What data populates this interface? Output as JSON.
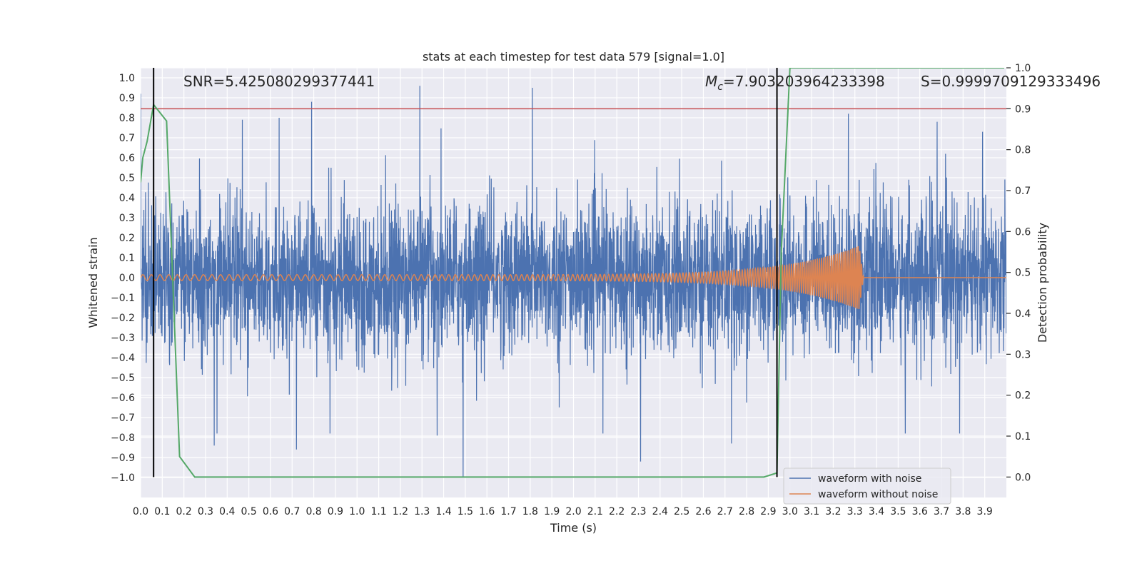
{
  "chart_data": {
    "type": "line",
    "title": "stats at each timestep for test data 579 [signal=1.0]",
    "xlabel": "Time (s)",
    "ylabel": "Whitened strain",
    "y2label": "Detection probability",
    "xlim": [
      0.0,
      4.0
    ],
    "ylim": [
      -1.1,
      1.05
    ],
    "y2lim": [
      -0.05,
      1.0
    ],
    "x_ticks": [
      "0.0",
      "0.1",
      "0.2",
      "0.3",
      "0.4",
      "0.5",
      "0.6",
      "0.7",
      "0.8",
      "0.9",
      "1.0",
      "1.1",
      "1.2",
      "1.3",
      "1.4",
      "1.5",
      "1.6",
      "1.7",
      "1.8",
      "1.9",
      "2.0",
      "2.1",
      "2.2",
      "2.3",
      "2.4",
      "2.5",
      "2.6",
      "2.7",
      "2.8",
      "2.9",
      "3.0",
      "3.1",
      "3.2",
      "3.3",
      "3.4",
      "3.5",
      "3.6",
      "3.7",
      "3.8",
      "3.9"
    ],
    "y_ticks": [
      "1.0",
      "0.9",
      "0.8",
      "0.7",
      "0.6",
      "0.5",
      "0.4",
      "0.3",
      "0.2",
      "0.1",
      "0.0",
      "−0.1",
      "−0.2",
      "−0.3",
      "−0.4",
      "−0.5",
      "−0.6",
      "−0.7",
      "−0.8",
      "−0.9",
      "−1.0"
    ],
    "y2_ticks": [
      "1.0",
      "0.9",
      "0.8",
      "0.7",
      "0.6",
      "0.5",
      "0.4",
      "0.3",
      "0.2",
      "0.1",
      "0.0"
    ],
    "grid": true,
    "legend_position": "bottom-right",
    "series": [
      {
        "name": "waveform with noise",
        "color": "#4c72b0",
        "axis": "left",
        "kind": "noise",
        "typical_amplitude": 0.25,
        "peaks": [
          {
            "x": 0.0,
            "y": 0.92
          },
          {
            "x": 0.47,
            "y": 0.79
          },
          {
            "x": 0.64,
            "y": 0.8
          },
          {
            "x": 0.79,
            "y": 0.88
          },
          {
            "x": 1.29,
            "y": 0.96
          },
          {
            "x": 1.49,
            "y": 0.95
          },
          {
            "x": 1.49,
            "y": -1.0
          },
          {
            "x": 1.81,
            "y": 0.95
          },
          {
            "x": 2.31,
            "y": -0.92
          },
          {
            "x": 1.37,
            "y": -0.79
          },
          {
            "x": 0.72,
            "y": -0.86
          },
          {
            "x": 0.34,
            "y": -0.84
          },
          {
            "x": 3.27,
            "y": 0.82
          },
          {
            "x": 3.89,
            "y": 0.73
          },
          {
            "x": 2.73,
            "y": -0.83
          }
        ]
      },
      {
        "name": "waveform without noise",
        "color": "#dd8452",
        "axis": "left",
        "kind": "chirp",
        "start_amplitude": 0.015,
        "peak_amplitude": 0.16,
        "merger_time": 3.32,
        "start_frequency": 25,
        "end_frequency": 120
      },
      {
        "name": "detection probability",
        "color": "#55a868",
        "axis": "right",
        "x": [
          0.0,
          0.01,
          0.03,
          0.06,
          0.12,
          0.18,
          0.25,
          2.88,
          2.94,
          2.96,
          3.0,
          3.5,
          3.99
        ],
        "y": [
          0.72,
          0.78,
          0.82,
          0.91,
          0.87,
          0.05,
          0.0,
          0.0,
          0.01,
          0.55,
          1.0,
          1.0,
          1.0
        ]
      }
    ],
    "threshold_line": {
      "color": "#c44e52",
      "y2": 0.9
    },
    "vertical_markers": [
      {
        "x": 0.06,
        "color": "#000000"
      },
      {
        "x": 2.94,
        "color": "#000000"
      }
    ],
    "annotations": [
      {
        "text": "SNR=5.425080299377441"
      },
      {
        "text_prefix": "M",
        "text_sub": "c",
        "text_suffix": "=7.903203964233398"
      },
      {
        "text": "S=0.9999709129333496"
      }
    ]
  }
}
